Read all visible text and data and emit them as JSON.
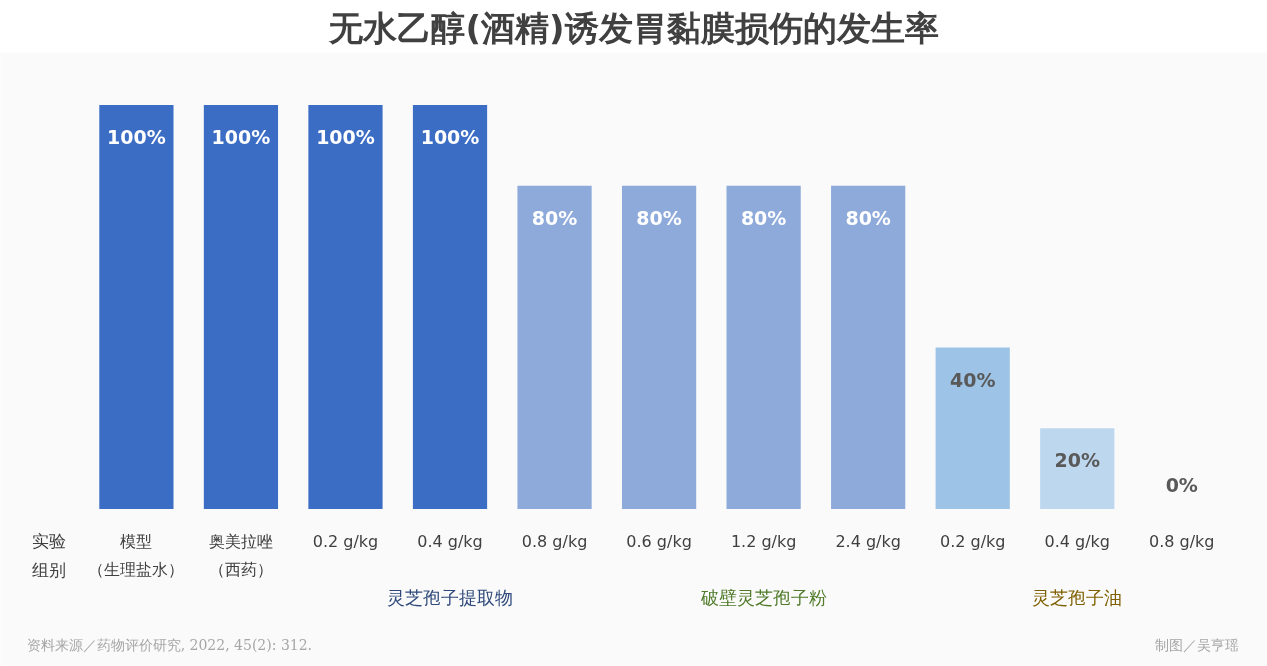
{
  "chart_data": {
    "type": "bar",
    "title": "无水乙醇(酒精)诱发胃黏膜损伤的发生率",
    "xlabel": "实验组别",
    "categories": [
      "模型（生理盐水）",
      "奥美拉唑（西药）",
      "0.2 g/kg",
      "0.4 g/kg",
      "0.8 g/kg",
      "0.6 g/kg",
      "1.2 g/kg",
      "2.4 g/kg",
      "0.2 g/kg",
      "0.4 g/kg",
      "0.8 g/kg"
    ],
    "values": [
      100,
      100,
      100,
      100,
      80,
      80,
      80,
      80,
      40,
      20,
      0
    ],
    "colors": [
      "#3b6dc4",
      "#3b6dc4",
      "#3b6dc4",
      "#3b6dc4",
      "#8eaadb",
      "#8eaadb",
      "#8eaadb",
      "#8eaadb",
      "#9dc3e6",
      "#bdd7ee",
      "#bdd7ee"
    ],
    "value_labels": [
      "100%",
      "100%",
      "100%",
      "100%",
      "80%",
      "80%",
      "80%",
      "80%",
      "40%",
      "20%",
      "0%"
    ],
    "annotations": [
      "灵芝孢子提取物",
      "破壁灵芝孢子粉",
      "灵芝孢子油",
      "资料来源／药物评价研究, 2022, 45(2): 312.",
      "制图／吴亨瑶"
    ],
    "grid": false
  }
}
